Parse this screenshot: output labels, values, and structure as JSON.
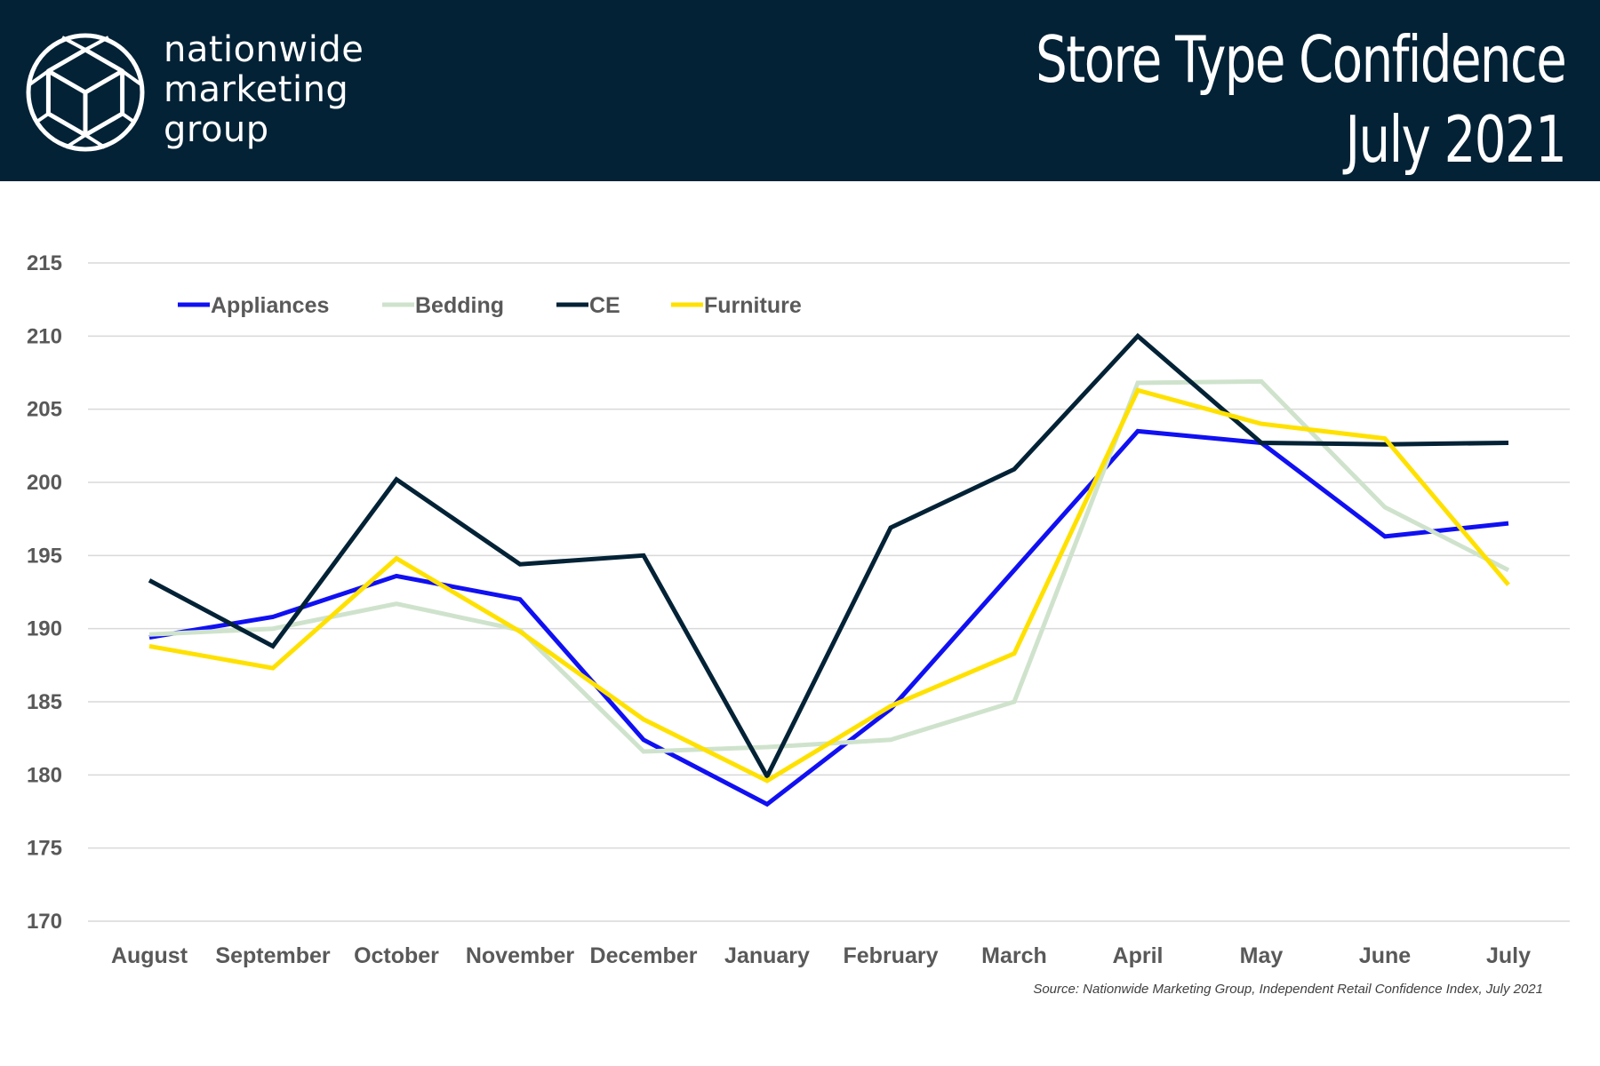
{
  "brand": {
    "line1": "nationwide",
    "line2": "marketing",
    "line3": "group"
  },
  "title": {
    "line1": "Store Type Confidence",
    "line2": "July 2021"
  },
  "source": "Source: Nationwide Marketing Group, Independent Retail Confidence Index, July 2021",
  "colors": {
    "header_bg": "#032236",
    "Appliances": "#1010f2",
    "Bedding": "#cfe3cc",
    "CE": "#032236",
    "Furniture": "#ffe100"
  },
  "chart_data": {
    "type": "line",
    "title": "Store Type Confidence July 2021",
    "categories": [
      "August",
      "September",
      "October",
      "November",
      "December",
      "January",
      "February",
      "March",
      "April",
      "May",
      "June",
      "July"
    ],
    "ylim": [
      170,
      215
    ],
    "yticks": [
      170,
      175,
      180,
      185,
      190,
      195,
      200,
      205,
      210,
      215
    ],
    "grid": true,
    "legend": "top-left",
    "series": [
      {
        "name": "Appliances",
        "values": [
          189.4,
          190.8,
          193.6,
          192.0,
          182.4,
          178.0,
          184.5,
          194.0,
          203.5,
          202.7,
          196.3,
          197.2
        ]
      },
      {
        "name": "Bedding",
        "values": [
          189.6,
          190.0,
          191.7,
          189.9,
          181.6,
          181.9,
          182.4,
          185.0,
          206.8,
          206.9,
          198.3,
          194.0
        ]
      },
      {
        "name": "CE",
        "values": [
          193.3,
          188.8,
          200.2,
          194.4,
          195.0,
          179.9,
          196.9,
          200.9,
          210.0,
          202.7,
          202.6,
          202.7
        ]
      },
      {
        "name": "Furniture",
        "values": [
          188.8,
          187.3,
          194.8,
          189.8,
          183.8,
          179.6,
          184.7,
          188.3,
          206.3,
          204.0,
          203.0,
          193.0
        ]
      }
    ]
  }
}
